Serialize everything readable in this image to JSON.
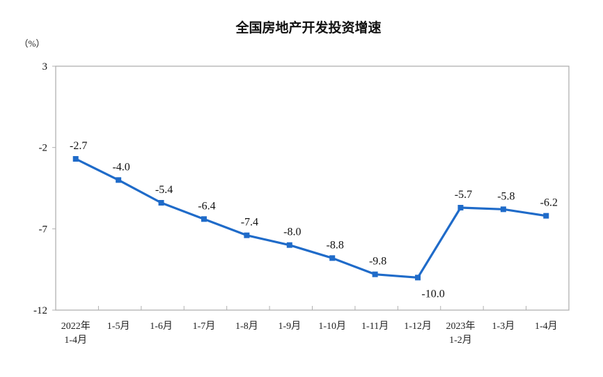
{
  "chart_data": {
    "type": "line",
    "title": "全国房地产开发投资增速",
    "ylabel": "（%）",
    "ylim": [
      -12,
      3
    ],
    "yticks": [
      3,
      -2,
      -7,
      -12
    ],
    "grid": false,
    "categories": [
      [
        "2022年",
        "1-4月"
      ],
      [
        "1-5月"
      ],
      [
        "1-6月"
      ],
      [
        "1-7月"
      ],
      [
        "1-8月"
      ],
      [
        "1-9月"
      ],
      [
        "1-10月"
      ],
      [
        "1-11月"
      ],
      [
        "1-12月"
      ],
      [
        "2023年",
        "1-2月"
      ],
      [
        "1-3月"
      ],
      [
        "1-4月"
      ]
    ],
    "values": [
      -2.7,
      -4.0,
      -5.4,
      -6.4,
      -7.4,
      -8.0,
      -8.8,
      -9.8,
      -10.0,
      -5.7,
      -5.8,
      -6.2
    ],
    "data_labels": [
      "-2.7",
      "-4.0",
      "-5.4",
      "-6.4",
      "-7.4",
      "-8.0",
      "-8.8",
      "-9.8",
      "-10.0",
      "-5.7",
      "-5.8",
      "-6.2"
    ],
    "line_color": "#1f6bc9",
    "axis_color": "#b0b0b0"
  }
}
